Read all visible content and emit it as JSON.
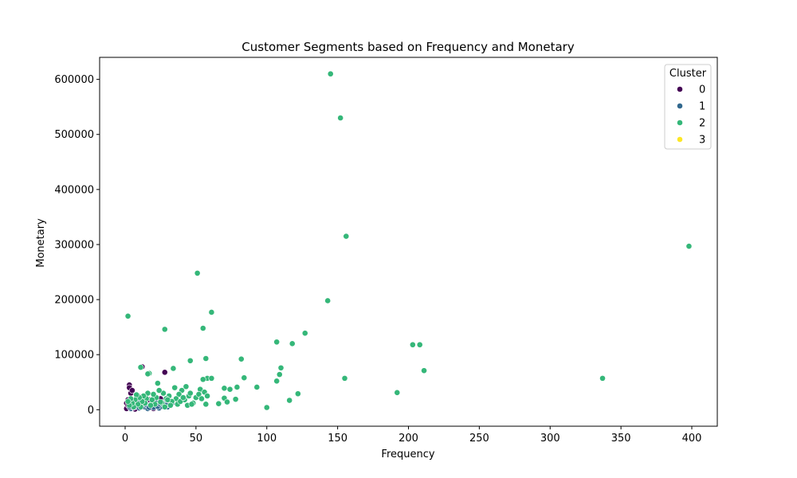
{
  "chart_data": {
    "type": "scatter",
    "title": "Customer Segments based on Frequency and Monetary",
    "xlabel": "Frequency",
    "ylabel": "Monetary",
    "xlim": [
      -18,
      418
    ],
    "ylim": [
      -30000,
      640000
    ],
    "xticks": [
      0,
      50,
      100,
      150,
      200,
      250,
      300,
      350,
      400
    ],
    "yticks": [
      0,
      100000,
      200000,
      300000,
      400000,
      500000,
      600000
    ],
    "grid": false,
    "legend": {
      "title": "Cluster",
      "placement": "top-right"
    },
    "series": [
      {
        "name": "0",
        "color": "#440154",
        "points": [
          [
            1,
            2000
          ],
          [
            1,
            12000
          ],
          [
            2,
            8000
          ],
          [
            3,
            45000
          ],
          [
            3,
            40000
          ],
          [
            4,
            30000
          ],
          [
            5,
            35000
          ],
          [
            5,
            5000
          ],
          [
            2,
            18000
          ],
          [
            6,
            15000
          ],
          [
            8,
            10000
          ],
          [
            10,
            22000
          ],
          [
            12,
            78000
          ],
          [
            12,
            5000
          ],
          [
            14,
            12000
          ],
          [
            18,
            8000
          ],
          [
            20,
            2000
          ],
          [
            22,
            14000
          ],
          [
            25,
            20000
          ],
          [
            27,
            6000
          ],
          [
            28,
            68000
          ],
          [
            24,
            9000
          ],
          [
            15,
            3000
          ],
          [
            7,
            1000
          ],
          [
            4,
            3000
          ],
          [
            9,
            25000
          ],
          [
            17,
            18000
          ],
          [
            30,
            12000
          ]
        ]
      },
      {
        "name": "1",
        "color": "#31688e",
        "points": [
          [
            4,
            2000
          ],
          [
            6,
            4000
          ],
          [
            8,
            6000
          ],
          [
            10,
            3000
          ],
          [
            12,
            8000
          ],
          [
            14,
            5000
          ],
          [
            16,
            2000
          ],
          [
            18,
            7000
          ],
          [
            20,
            4000
          ],
          [
            22,
            9000
          ],
          [
            24,
            3000
          ],
          [
            26,
            6000
          ],
          [
            28,
            10000
          ],
          [
            30,
            5000
          ],
          [
            32,
            8000
          ],
          [
            11,
            12000
          ],
          [
            15,
            9000
          ],
          [
            19,
            11000
          ],
          [
            23,
            6000
          ],
          [
            27,
            13000
          ],
          [
            9,
            15000
          ],
          [
            13,
            18000
          ],
          [
            17,
            4000
          ],
          [
            21,
            16000
          ],
          [
            25,
            10000
          ],
          [
            29,
            8000
          ],
          [
            33,
            12000
          ],
          [
            7,
            9000
          ],
          [
            5,
            7000
          ],
          [
            3,
            5000
          ]
        ]
      },
      {
        "name": "2",
        "color": "#35b779",
        "points": [
          [
            145,
            610000
          ],
          [
            152,
            530000
          ],
          [
            156,
            315000
          ],
          [
            398,
            297000
          ],
          [
            51,
            248000
          ],
          [
            61,
            177000
          ],
          [
            2,
            170000
          ],
          [
            143,
            198000
          ],
          [
            55,
            148000
          ],
          [
            28,
            146000
          ],
          [
            127,
            139000
          ],
          [
            107,
            123000
          ],
          [
            118,
            120000
          ],
          [
            203,
            118000
          ],
          [
            208,
            118000
          ],
          [
            82,
            92000
          ],
          [
            57,
            93000
          ],
          [
            46,
            89000
          ],
          [
            11,
            77000
          ],
          [
            34,
            75000
          ],
          [
            110,
            76000
          ],
          [
            211,
            71000
          ],
          [
            109,
            64000
          ],
          [
            337,
            57000
          ],
          [
            155,
            57000
          ],
          [
            84,
            58000
          ],
          [
            58,
            57000
          ],
          [
            61,
            57000
          ],
          [
            55,
            55000
          ],
          [
            107,
            52000
          ],
          [
            93,
            41000
          ],
          [
            79,
            41000
          ],
          [
            70,
            39000
          ],
          [
            74,
            37000
          ],
          [
            53,
            37000
          ],
          [
            56,
            32000
          ],
          [
            122,
            29000
          ],
          [
            192,
            31000
          ],
          [
            78,
            19000
          ],
          [
            70,
            21000
          ],
          [
            72,
            14000
          ],
          [
            66,
            11000
          ],
          [
            116,
            17000
          ],
          [
            100,
            4000
          ],
          [
            57,
            10000
          ],
          [
            48,
            12000
          ],
          [
            45,
            25000
          ],
          [
            43,
            42000
          ],
          [
            40,
            35000
          ],
          [
            38,
            28000
          ],
          [
            36,
            20000
          ],
          [
            35,
            40000
          ],
          [
            33,
            15000
          ],
          [
            31,
            25000
          ],
          [
            29,
            20000
          ],
          [
            27,
            30000
          ],
          [
            26,
            12000
          ],
          [
            24,
            35000
          ],
          [
            23,
            48000
          ],
          [
            22,
            22000
          ],
          [
            21,
            10000
          ],
          [
            20,
            28000
          ],
          [
            19,
            18000
          ],
          [
            18,
            8000
          ],
          [
            17,
            66000
          ],
          [
            16,
            65000
          ],
          [
            16,
            30000
          ],
          [
            15,
            20000
          ],
          [
            14,
            12000
          ],
          [
            13,
            25000
          ],
          [
            12,
            15000
          ],
          [
            11,
            5000
          ],
          [
            10,
            22000
          ],
          [
            9,
            10000
          ],
          [
            8,
            27000
          ],
          [
            7,
            18000
          ],
          [
            6,
            5000
          ],
          [
            5,
            12000
          ],
          [
            4,
            20000
          ],
          [
            3,
            8000
          ],
          [
            2,
            15000
          ],
          [
            42,
            18000
          ],
          [
            44,
            8000
          ],
          [
            46,
            30000
          ],
          [
            47,
            10000
          ],
          [
            50,
            22000
          ],
          [
            52,
            28000
          ],
          [
            54,
            20000
          ],
          [
            58,
            25000
          ],
          [
            37,
            10000
          ],
          [
            39,
            15000
          ],
          [
            41,
            22000
          ],
          [
            32,
            8000
          ],
          [
            30,
            18000
          ],
          [
            28,
            5000
          ],
          [
            25,
            14000
          ]
        ]
      },
      {
        "name": "3",
        "color": "#fde725",
        "points": []
      }
    ]
  }
}
